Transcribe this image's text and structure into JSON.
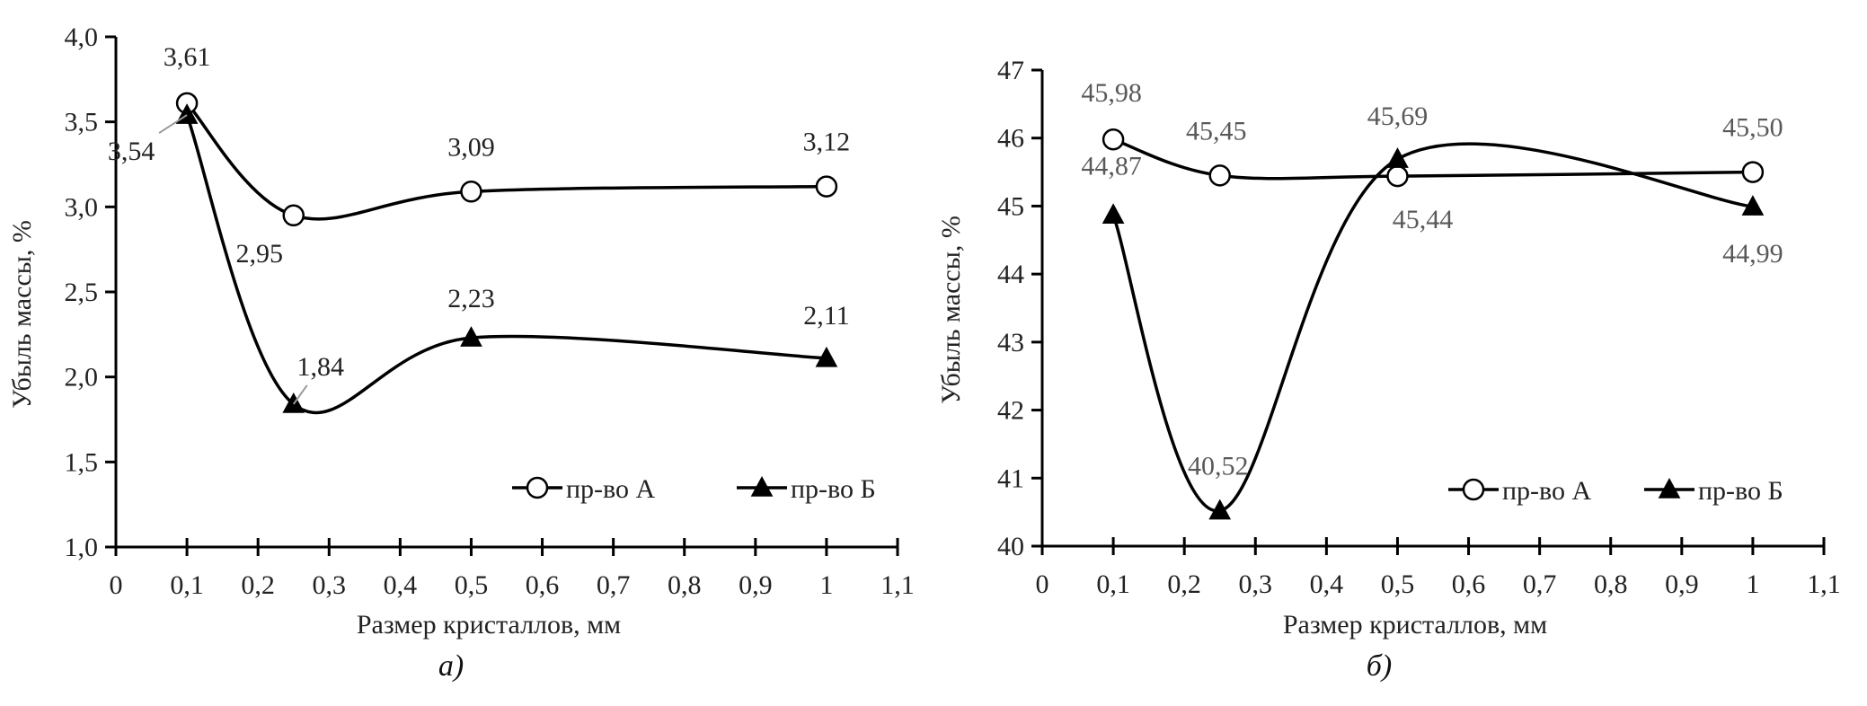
{
  "chart_data": [
    {
      "type": "line",
      "caption": "а)",
      "xlabel": "Размер кристаллов, мм",
      "ylabel": "Убыль массы, %",
      "xlim": [
        0,
        1.1
      ],
      "ylim": [
        1.0,
        4.0
      ],
      "xticks": [
        "0",
        "0,1",
        "0,2",
        "0,3",
        "0,4",
        "0,5",
        "0,6",
        "0,7",
        "0,8",
        "0,9",
        "1",
        "1,1"
      ],
      "yticks": [
        "1,0",
        "1,5",
        "2,0",
        "2,5",
        "3,0",
        "3,5",
        "4,0"
      ],
      "x": [
        0.1,
        0.25,
        0.5,
        1.0
      ],
      "legend_position": "bottom-right",
      "series": [
        {
          "name": "пр-во А",
          "marker": "circle",
          "values": [
            3.61,
            2.95,
            3.09,
            3.12
          ],
          "labels": [
            "3,61",
            "2,95",
            "3,09",
            "3,12"
          ]
        },
        {
          "name": "пр-во Б",
          "marker": "triangle",
          "values": [
            3.54,
            1.84,
            2.23,
            2.11
          ],
          "labels": [
            "3,54",
            "1,84",
            "2,23",
            "2,11"
          ]
        }
      ]
    },
    {
      "type": "line",
      "caption": "б)",
      "xlabel": "Размер кристаллов, мм",
      "ylabel": "Убыль массы, %",
      "xlim": [
        0,
        1.1
      ],
      "ylim": [
        40,
        47
      ],
      "xticks": [
        "0",
        "0,1",
        "0,2",
        "0,3",
        "0,4",
        "0,5",
        "0,6",
        "0,7",
        "0,8",
        "0,9",
        "1",
        "1,1"
      ],
      "yticks": [
        "40",
        "41",
        "42",
        "43",
        "44",
        "45",
        "46",
        "47"
      ],
      "x": [
        0.1,
        0.25,
        0.5,
        1.0
      ],
      "legend_position": "bottom-right",
      "series": [
        {
          "name": "пр-во А",
          "marker": "circle",
          "values": [
            45.98,
            45.45,
            45.44,
            45.5
          ],
          "labels": [
            "45,98",
            "45,45",
            "45,44",
            "45,50"
          ]
        },
        {
          "name": "пр-во Б",
          "marker": "triangle",
          "values": [
            44.87,
            40.52,
            45.69,
            44.99
          ],
          "labels": [
            "44,87",
            "40,52",
            "45,69",
            "44,99"
          ]
        }
      ]
    }
  ]
}
